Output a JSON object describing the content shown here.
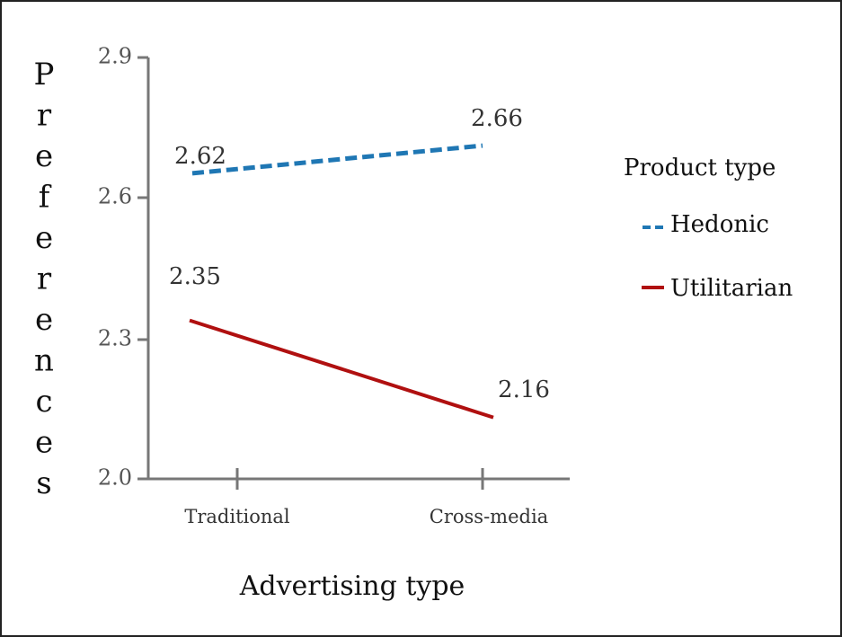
{
  "chart_data": {
    "type": "line",
    "categories": [
      "Traditional",
      "Cross-media"
    ],
    "series": [
      {
        "name": "Hedonic",
        "values": [
          2.62,
          2.66
        ],
        "color": "#1f77b4",
        "dash": "dashed"
      },
      {
        "name": "Utilitarian",
        "values": [
          2.35,
          2.16
        ],
        "color": "#b01010",
        "dash": "solid"
      }
    ],
    "xlabel": "Advertising type",
    "ylabel": "Preferences",
    "yticks": [
      "2.0",
      "2.3",
      "2.6",
      "2.9"
    ],
    "ylim": [
      2.0,
      2.9
    ],
    "legend_title": "Product type",
    "legend_position": "right",
    "grid": false
  }
}
